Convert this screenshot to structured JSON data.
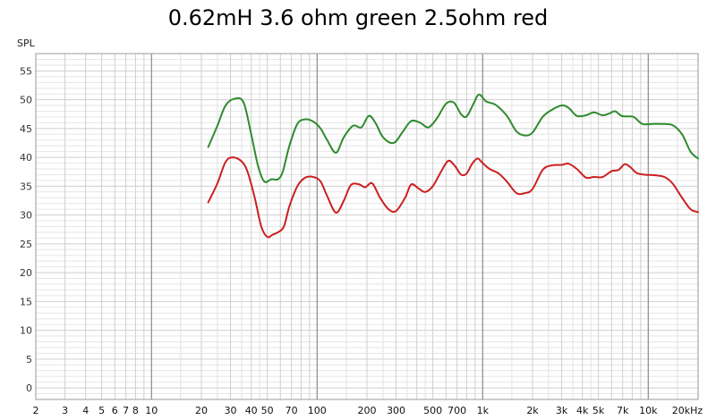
{
  "chart_data": {
    "type": "line",
    "title": "0.62mH 3.6 ohm green 2.5ohm red",
    "ylabel": "SPL",
    "xlabel": "",
    "x_scale": "log",
    "xlim": [
      2,
      20000
    ],
    "ylim": [
      -2,
      58
    ],
    "grid": true,
    "y_ticks": [
      0,
      5,
      10,
      15,
      20,
      25,
      30,
      35,
      40,
      45,
      50,
      55
    ],
    "x_tick_labels": [
      {
        "value": 2,
        "label": "2"
      },
      {
        "value": 3,
        "label": "3"
      },
      {
        "value": 4,
        "label": "4"
      },
      {
        "value": 5,
        "label": "5"
      },
      {
        "value": 6,
        "label": "6"
      },
      {
        "value": 7,
        "label": "7"
      },
      {
        "value": 8,
        "label": "8"
      },
      {
        "value": 10,
        "label": "10"
      },
      {
        "value": 20,
        "label": "20"
      },
      {
        "value": 30,
        "label": "30"
      },
      {
        "value": 40,
        "label": "40"
      },
      {
        "value": 50,
        "label": "50"
      },
      {
        "value": 70,
        "label": "70"
      },
      {
        "value": 100,
        "label": "100"
      },
      {
        "value": 200,
        "label": "200"
      },
      {
        "value": 300,
        "label": "300"
      },
      {
        "value": 500,
        "label": "500"
      },
      {
        "value": 700,
        "label": "700"
      },
      {
        "value": 1000,
        "label": "1k"
      },
      {
        "value": 2000,
        "label": "2k"
      },
      {
        "value": 3000,
        "label": "3k"
      },
      {
        "value": 4000,
        "label": "4k"
      },
      {
        "value": 5000,
        "label": "5k"
      },
      {
        "value": 7000,
        "label": "7k"
      },
      {
        "value": 10000,
        "label": "10k"
      },
      {
        "value": 20000,
        "label": "20kHz"
      }
    ],
    "series": [
      {
        "color": "#2e8b2e",
        "points": [
          [
            22,
            41.8
          ],
          [
            25,
            45.5
          ],
          [
            28,
            49
          ],
          [
            32,
            50.2
          ],
          [
            36,
            49.5
          ],
          [
            40,
            44
          ],
          [
            44,
            38.5
          ],
          [
            48,
            35.8
          ],
          [
            53,
            36.2
          ],
          [
            58,
            36.2
          ],
          [
            62,
            37.5
          ],
          [
            68,
            42
          ],
          [
            76,
            45.8
          ],
          [
            85,
            46.6
          ],
          [
            95,
            46.2
          ],
          [
            105,
            45
          ],
          [
            115,
            43
          ],
          [
            130,
            40.8
          ],
          [
            145,
            43.5
          ],
          [
            165,
            45.5
          ],
          [
            185,
            45.2
          ],
          [
            205,
            47.2
          ],
          [
            225,
            46
          ],
          [
            250,
            43.5
          ],
          [
            290,
            42.5
          ],
          [
            330,
            44.5
          ],
          [
            370,
            46.3
          ],
          [
            420,
            46
          ],
          [
            470,
            45.2
          ],
          [
            530,
            46.8
          ],
          [
            600,
            49.3
          ],
          [
            670,
            49.5
          ],
          [
            740,
            47.5
          ],
          [
            800,
            47.1
          ],
          [
            880,
            49.3
          ],
          [
            950,
            50.9
          ],
          [
            1050,
            49.7
          ],
          [
            1200,
            49.1
          ],
          [
            1400,
            47.2
          ],
          [
            1600,
            44.5
          ],
          [
            1800,
            43.8
          ],
          [
            2000,
            44.3
          ],
          [
            2300,
            47
          ],
          [
            2600,
            48.2
          ],
          [
            3000,
            49
          ],
          [
            3300,
            48.6
          ],
          [
            3700,
            47.2
          ],
          [
            4200,
            47.3
          ],
          [
            4700,
            47.8
          ],
          [
            5300,
            47.3
          ],
          [
            5800,
            47.6
          ],
          [
            6300,
            48
          ],
          [
            6900,
            47.2
          ],
          [
            7600,
            47.1
          ],
          [
            8200,
            47
          ],
          [
            9200,
            45.8
          ],
          [
            10500,
            45.8
          ],
          [
            12000,
            45.8
          ],
          [
            14000,
            45.6
          ],
          [
            16000,
            44
          ],
          [
            18000,
            41
          ],
          [
            20000,
            39.8
          ]
        ]
      },
      {
        "color": "#cc1f1f",
        "points": [
          [
            22,
            32.2
          ],
          [
            25,
            35.5
          ],
          [
            28,
            39.2
          ],
          [
            31,
            40
          ],
          [
            35,
            39.3
          ],
          [
            38,
            37.5
          ],
          [
            42,
            33
          ],
          [
            46,
            28
          ],
          [
            50,
            26.2
          ],
          [
            54,
            26.6
          ],
          [
            58,
            27
          ],
          [
            63,
            28
          ],
          [
            68,
            31.5
          ],
          [
            76,
            35
          ],
          [
            85,
            36.5
          ],
          [
            95,
            36.6
          ],
          [
            105,
            35.8
          ],
          [
            115,
            33.3
          ],
          [
            130,
            30.4
          ],
          [
            145,
            32.5
          ],
          [
            160,
            35.2
          ],
          [
            180,
            35.3
          ],
          [
            195,
            34.8
          ],
          [
            215,
            35.5
          ],
          [
            240,
            33
          ],
          [
            270,
            31
          ],
          [
            300,
            30.7
          ],
          [
            340,
            33
          ],
          [
            370,
            35.3
          ],
          [
            410,
            34.6
          ],
          [
            450,
            34
          ],
          [
            500,
            35
          ],
          [
            560,
            37.5
          ],
          [
            620,
            39.4
          ],
          [
            680,
            38.5
          ],
          [
            740,
            37
          ],
          [
            800,
            37.2
          ],
          [
            860,
            38.8
          ],
          [
            930,
            39.8
          ],
          [
            1000,
            39
          ],
          [
            1100,
            38
          ],
          [
            1250,
            37.2
          ],
          [
            1400,
            35.8
          ],
          [
            1600,
            33.8
          ],
          [
            1800,
            33.8
          ],
          [
            2000,
            34.5
          ],
          [
            2300,
            37.8
          ],
          [
            2600,
            38.6
          ],
          [
            3000,
            38.7
          ],
          [
            3300,
            38.9
          ],
          [
            3700,
            38
          ],
          [
            4200,
            36.5
          ],
          [
            4700,
            36.6
          ],
          [
            5300,
            36.6
          ],
          [
            6000,
            37.6
          ],
          [
            6600,
            37.8
          ],
          [
            7200,
            38.8
          ],
          [
            7800,
            38.3
          ],
          [
            8500,
            37.3
          ],
          [
            9500,
            37
          ],
          [
            11000,
            36.9
          ],
          [
            12500,
            36.6
          ],
          [
            14000,
            35.5
          ],
          [
            16000,
            33
          ],
          [
            18000,
            31
          ],
          [
            20000,
            30.5
          ]
        ]
      }
    ]
  }
}
